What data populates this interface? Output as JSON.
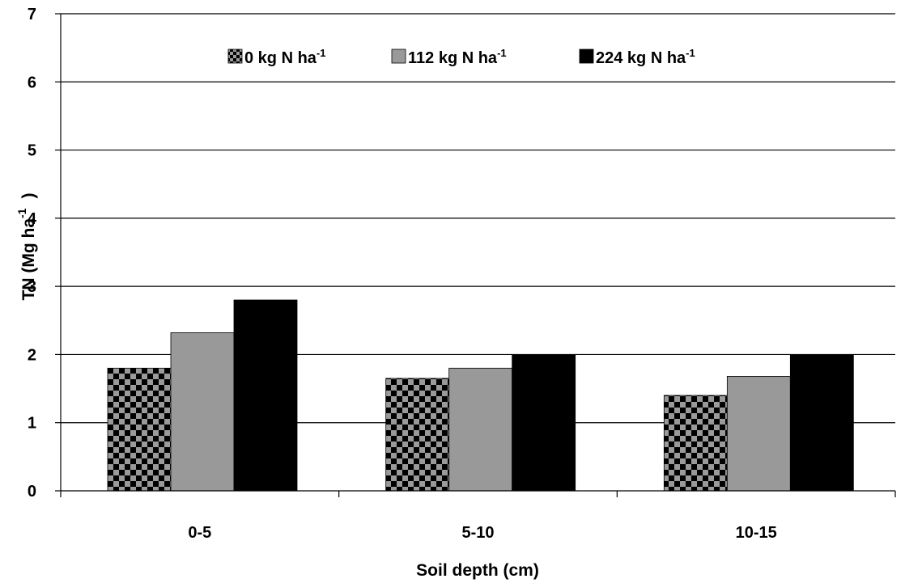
{
  "chart_data": {
    "type": "bar",
    "categories": [
      "0-5",
      "5-10",
      "10-15"
    ],
    "series": [
      {
        "name": "0 kg N ha",
        "superscript": "-1",
        "values": [
          1.8,
          1.65,
          1.4
        ],
        "pattern": "checkerboard"
      },
      {
        "name": "112 kg N ha",
        "superscript": "-1",
        "values": [
          2.32,
          1.8,
          1.68
        ],
        "color": "#999999"
      },
      {
        "name": "224 kg N ha",
        "superscript": "-1",
        "values": [
          2.8,
          2.0,
          2.0
        ],
        "color": "#000000"
      }
    ],
    "xlabel": "Soil depth (cm)",
    "ylabel": "TN (Mg ha",
    "ylabel_superscript": "-1",
    "ylabel_close": ")",
    "ylim": [
      0,
      7
    ],
    "yticks": [
      0,
      1,
      2,
      3,
      4,
      5,
      6,
      7
    ],
    "grid": true,
    "legend": "top"
  }
}
